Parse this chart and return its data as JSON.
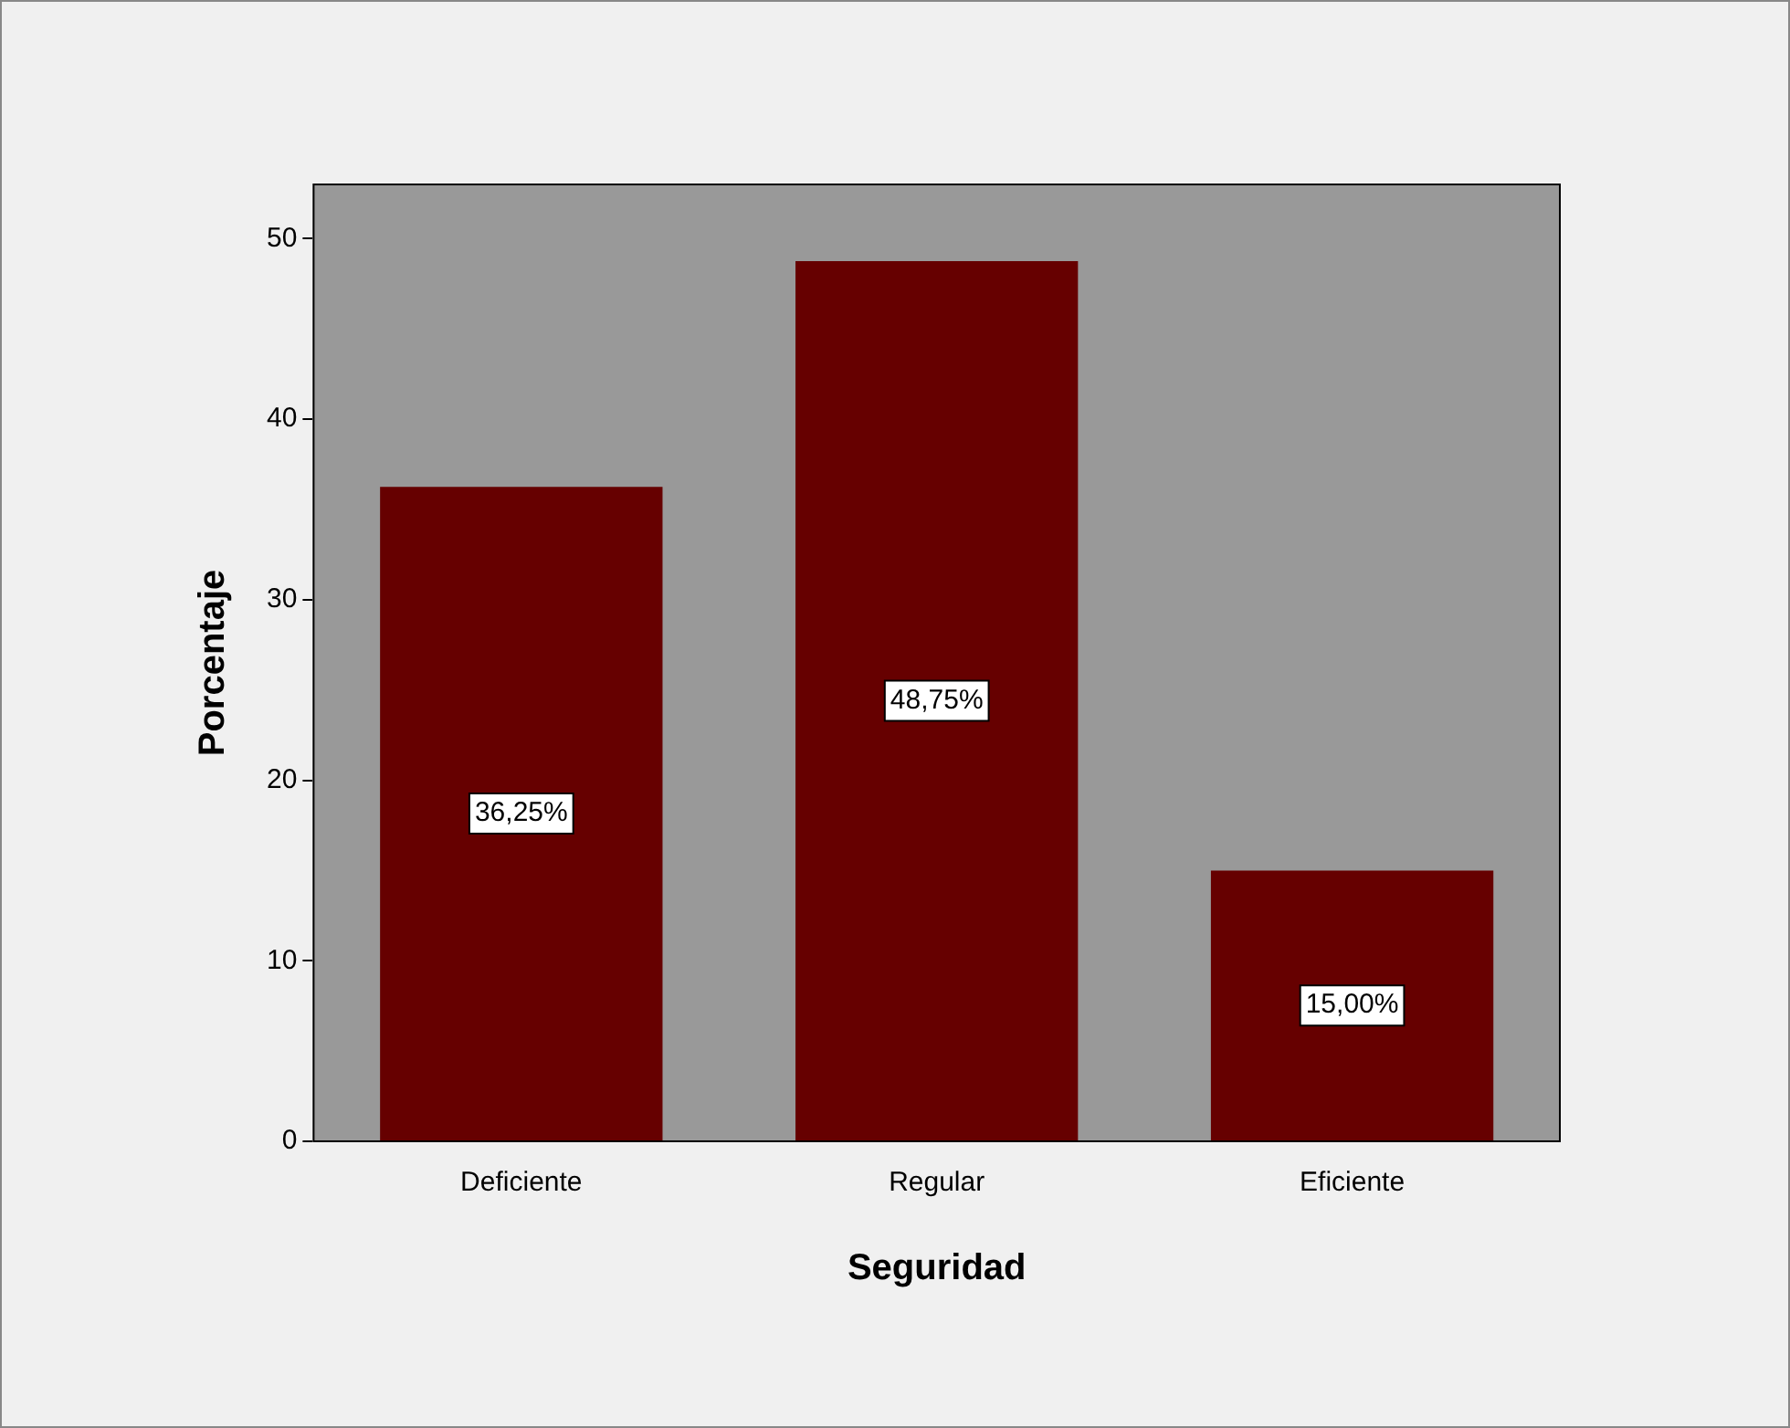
{
  "chart_data": {
    "type": "bar",
    "xlabel": "Seguridad",
    "ylabel": "Porcentaje",
    "categories": [
      "Deficiente",
      "Regular",
      "Eficiente"
    ],
    "values": [
      36.25,
      48.75,
      15.0
    ],
    "value_labels": [
      "36,25%",
      "48,75%",
      "15,00%"
    ],
    "color": "#660000",
    "ylim": [
      0,
      53
    ],
    "yticks": [
      0,
      10,
      20,
      30,
      40,
      50
    ],
    "grid": false,
    "legend": false
  }
}
